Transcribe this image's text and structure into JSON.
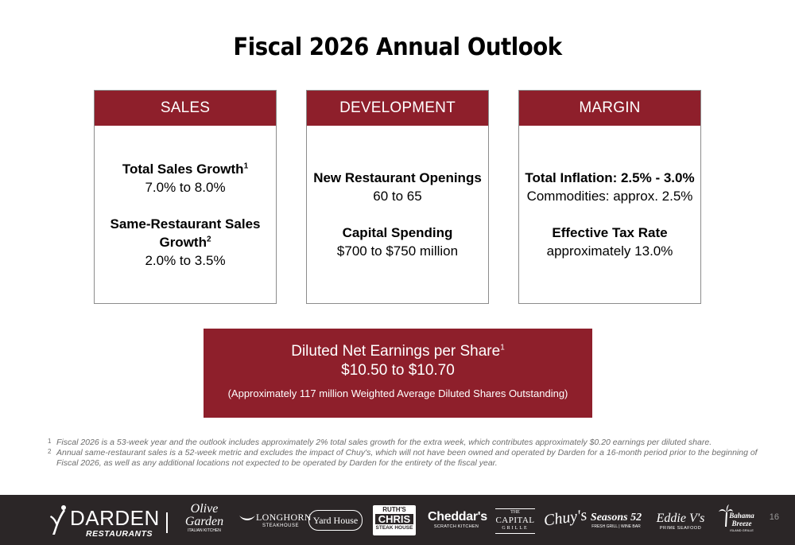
{
  "title": "Fiscal 2026 Annual Outlook",
  "cards": [
    {
      "header": "SALES",
      "items": [
        {
          "label": "Total Sales Growth",
          "sup": "1",
          "value": "7.0% to 8.0%"
        },
        {
          "label_line1": "Same-Restaurant Sales",
          "label_line2": "Growth",
          "sup": "2",
          "value": "2.0% to 3.5%"
        }
      ]
    },
    {
      "header": "DEVELOPMENT",
      "items": [
        {
          "label": "New Restaurant Openings",
          "value": "60 to 65"
        },
        {
          "label": "Capital Spending",
          "value": "$700 to $750 million"
        }
      ]
    },
    {
      "header": "MARGIN",
      "items": [
        {
          "label": "Total Inflation: 2.5% - 3.0%",
          "value": "Commodities: approx. 2.5%"
        },
        {
          "label": "Effective Tax Rate",
          "value": "approximately 13.0%"
        }
      ]
    }
  ],
  "eps": {
    "label": "Diluted Net Earnings per Share",
    "sup": "1",
    "value": "$10.50 to $10.70",
    "note": "(Approximately 117 million Weighted Average Diluted Shares Outstanding)"
  },
  "footnotes": [
    {
      "num": "1",
      "text": "Fiscal 2026 is a 53-week year and the outlook includes approximately 2% total sales growth for the extra week, which contributes approximately $0.20 earnings per diluted share."
    },
    {
      "num": "2",
      "text": "Annual same-restaurant sales is a 52-week metric and excludes the impact of Chuy's, which will not have been owned and operated by Darden for a 16-month period prior to the beginning of Fiscal 2026, as well as any additional locations not expected to be operated by Darden for the entirety of the fiscal year."
    }
  ],
  "footer": {
    "darden_line1": "DARDEN",
    "darden_line2": "RESTAURANTS",
    "brands": {
      "olive_garden_1": "Olive",
      "olive_garden_2": "Garden",
      "olive_garden_3": "ITALIAN KITCHEN",
      "longhorn_1": "LONGHORN",
      "longhorn_2": "STEAKHOUSE",
      "yard_house": "Yard House",
      "ruths_1": "RUTH'S",
      "ruths_2": "CHRIS",
      "ruths_3": "STEAK HOUSE",
      "cheddars_1": "Cheddar's",
      "cheddars_2": "SCRATCH KITCHEN",
      "capital_1": "THE",
      "capital_2": "CAPITAL",
      "capital_3": "GRILLE",
      "chuys": "Chuy's",
      "seasons_1": "Seasons 52",
      "seasons_2": "FRESH GRILL | WINE BAR",
      "eddie_1": "Eddie V's",
      "eddie_2": "PRIME SEAFOOD",
      "bahama_1": "Bahama",
      "bahama_2": "Breeze",
      "bahama_3": "ISLAND GRILLE"
    },
    "page_number": "16"
  },
  "colors": {
    "accent": "#8e1f2b",
    "footer_bg": "#2b2627"
  }
}
